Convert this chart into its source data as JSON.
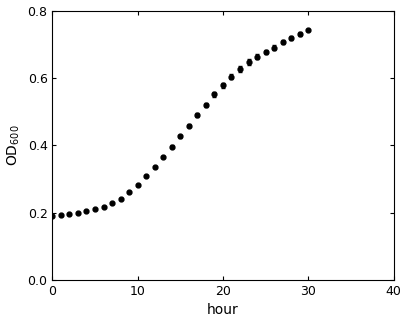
{
  "x": [
    0,
    1,
    2,
    3,
    4,
    5,
    6,
    7,
    8,
    9,
    10,
    11,
    12,
    13,
    14,
    15,
    16,
    17,
    18,
    19,
    20,
    21,
    22,
    23,
    24,
    25,
    26,
    27,
    28,
    29,
    30
  ],
  "y": [
    0.19,
    0.192,
    0.195,
    0.199,
    0.204,
    0.21,
    0.218,
    0.228,
    0.242,
    0.26,
    0.282,
    0.308,
    0.336,
    0.366,
    0.396,
    0.427,
    0.458,
    0.49,
    0.521,
    0.551,
    0.578,
    0.604,
    0.627,
    0.647,
    0.663,
    0.677,
    0.69,
    0.706,
    0.718,
    0.73,
    0.742
  ],
  "yerr": [
    0.002,
    0.002,
    0.002,
    0.002,
    0.002,
    0.002,
    0.002,
    0.002,
    0.002,
    0.002,
    0.003,
    0.003,
    0.003,
    0.003,
    0.004,
    0.005,
    0.005,
    0.006,
    0.006,
    0.007,
    0.007,
    0.008,
    0.008,
    0.008,
    0.007,
    0.007,
    0.007,
    0.006,
    0.005,
    0.005,
    0.004
  ],
  "xlabel": "hour",
  "ylabel": "OD$_{600}$",
  "xlim": [
    0,
    40
  ],
  "ylim": [
    0.0,
    0.8
  ],
  "xticks": [
    0,
    10,
    20,
    30,
    40
  ],
  "yticks": [
    0.0,
    0.2,
    0.4,
    0.6,
    0.8
  ],
  "line_color": "#000000",
  "marker": "o",
  "markersize": 3.5,
  "linewidth": 0.8,
  "bg_color": "#ffffff",
  "error_capsize": 1.5,
  "error_linewidth": 0.7,
  "xlabel_fontsize": 10,
  "ylabel_fontsize": 10,
  "tick_labelsize": 9
}
